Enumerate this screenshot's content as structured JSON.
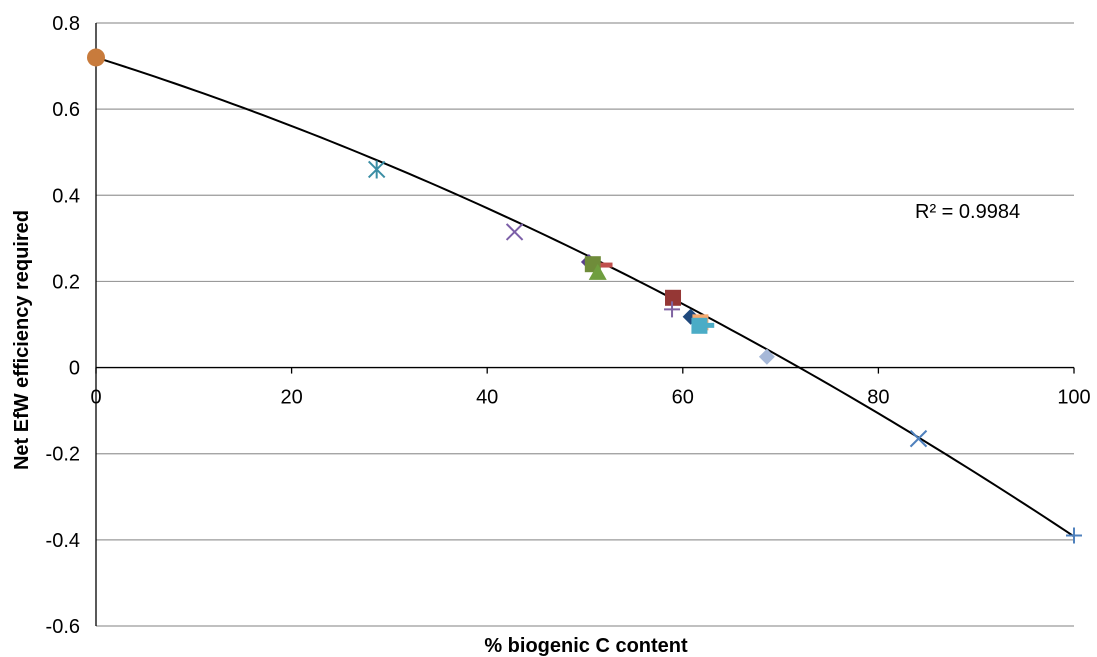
{
  "chart_data": {
    "type": "scatter",
    "xlabel": "% biogenic C content",
    "ylabel": "Net EfW efficiency required",
    "xlim": [
      0,
      100
    ],
    "ylim": [
      -0.6,
      0.8
    ],
    "x_ticks": [
      0,
      20,
      40,
      60,
      80,
      100
    ],
    "y_ticks": [
      -0.6,
      -0.4,
      -0.2,
      0,
      0.2,
      0.4,
      0.6,
      0.8
    ],
    "x_tick_labels": [
      "0",
      "20",
      "40",
      "60",
      "80",
      "100"
    ],
    "y_tick_labels": [
      "-0.6",
      "-0.4",
      "-0.2",
      "0",
      "0.2",
      "0.4",
      "0.6",
      "0.8"
    ],
    "grid": "horizontal",
    "annotation": "R² = 0.9984",
    "points": [
      {
        "x": 0,
        "y": 0.72,
        "marker": "circle",
        "color": "#c87b3c"
      },
      {
        "x": 28.7,
        "y": 0.46,
        "marker": "asterisk",
        "color": "#3b8ea5"
      },
      {
        "x": 42.8,
        "y": 0.315,
        "marker": "x",
        "color": "#7c5fa8"
      },
      {
        "x": 50.4,
        "y": 0.245,
        "marker": "diamond",
        "color": "#5b3f8f"
      },
      {
        "x": 50.8,
        "y": 0.24,
        "marker": "square",
        "color": "#6f8c3a"
      },
      {
        "x": 51.3,
        "y": 0.22,
        "marker": "triangle",
        "color": "#6f9e3f"
      },
      {
        "x": 52.2,
        "y": 0.238,
        "marker": "dash",
        "color": "#c0504d"
      },
      {
        "x": 59.0,
        "y": 0.162,
        "marker": "square",
        "color": "#953735"
      },
      {
        "x": 58.9,
        "y": 0.135,
        "marker": "plus",
        "color": "#8064a2"
      },
      {
        "x": 60.8,
        "y": 0.118,
        "marker": "diamond",
        "color": "#1f497d"
      },
      {
        "x": 61.8,
        "y": 0.105,
        "marker": "square",
        "color": "#f5a96e"
      },
      {
        "x": 61.7,
        "y": 0.097,
        "marker": "square",
        "color": "#4bacc6"
      },
      {
        "x": 62.6,
        "y": 0.098,
        "marker": "dash",
        "color": "#4bacc6"
      },
      {
        "x": 68.6,
        "y": 0.025,
        "marker": "diamond",
        "color": "#a6b8d8"
      },
      {
        "x": 84.1,
        "y": -0.165,
        "marker": "x",
        "color": "#4f81bd"
      },
      {
        "x": 100,
        "y": -0.39,
        "marker": "plus",
        "color": "#4f81bd"
      }
    ],
    "trendline": {
      "type": "polynomial",
      "coefficients": [
        0.72,
        -0.00717,
        -3.95e-05
      ]
    },
    "colors": {
      "grid": "#9a9a9a",
      "axis": "#000000",
      "trendline": "#000000"
    }
  }
}
